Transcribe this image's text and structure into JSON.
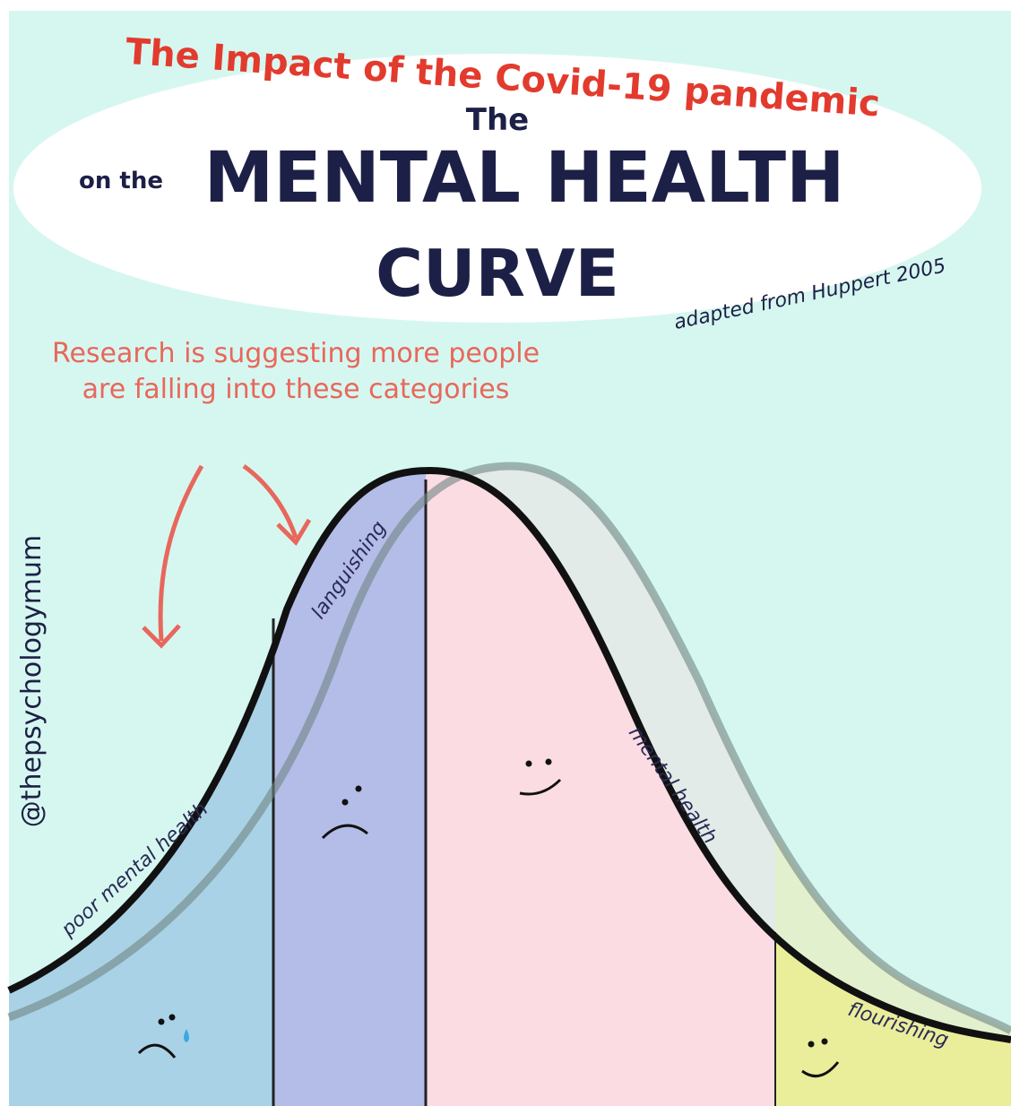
{
  "header": {
    "subtitle": "The Impact of the Covid-19 pandemic",
    "prefix": "on the",
    "article": "The",
    "title_line1": "MENTAL HEALTH",
    "title_line2": "CURVE",
    "source": "adapted from Huppert 2005"
  },
  "annotation": "Research is suggesting more people are falling into these categories",
  "credit": "@thepsychologymum",
  "regions": [
    {
      "label": "poor mental health"
    },
    {
      "label": "languishing"
    },
    {
      "label": "mental health"
    },
    {
      "label": "flourishing"
    }
  ]
}
